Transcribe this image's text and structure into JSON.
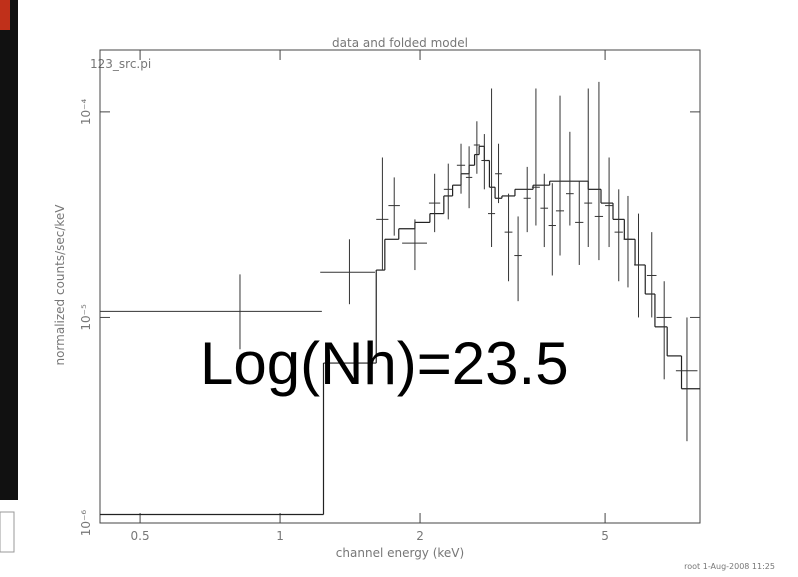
{
  "chart_data": {
    "type": "spectrum",
    "title": "data and folded model",
    "subtitle": "123_src.pi",
    "x_label": "channel energy (keV)",
    "y_label": "normalized counts/sec/keV",
    "footer": "root  1-Aug-2008 11:25",
    "annotation": "Log(Nh)=23.5",
    "log_x": true,
    "log_y": true,
    "xlim": [
      0.41,
      8
    ],
    "ylim": [
      1e-06,
      0.0002
    ],
    "xticks": [
      0.5,
      1,
      2,
      5
    ],
    "yticks": [
      {
        "value": 1e-06,
        "label": "10⁻⁶"
      },
      {
        "value": 1e-05,
        "label": "10⁻⁵"
      },
      {
        "value": 0.0001,
        "label": "10⁻⁴"
      }
    ],
    "color": "#333333",
    "data": {
      "x": [
        0.82,
        1.41,
        1.66,
        1.76,
        1.95,
        2.15,
        2.3,
        2.45,
        2.55,
        2.65,
        2.75,
        2.85,
        2.95,
        3.1,
        3.25,
        3.4,
        3.55,
        3.7,
        3.85,
        4.0,
        4.2,
        4.4,
        4.6,
        4.85,
        5.1,
        5.35,
        5.6,
        5.9,
        6.3,
        6.7,
        7.5
      ],
      "x_halfwidth": [
        0.41,
        0.19,
        0.05,
        0.05,
        0.12,
        0.06,
        0.05,
        0.05,
        0.04,
        0.04,
        0.04,
        0.05,
        0.05,
        0.06,
        0.06,
        0.06,
        0.07,
        0.07,
        0.07,
        0.08,
        0.08,
        0.09,
        0.09,
        0.1,
        0.1,
        0.11,
        0.12,
        0.13,
        0.15,
        0.25,
        0.4
      ],
      "values": [
        1.07e-05,
        1.66e-05,
        3e-05,
        3.5e-05,
        2.3e-05,
        3.6e-05,
        4.2e-05,
        5.5e-05,
        4.8e-05,
        6.9e-05,
        5.8e-05,
        3.2e-05,
        5e-05,
        2.6e-05,
        2e-05,
        3.8e-05,
        4.3e-05,
        3.4e-05,
        2.8e-05,
        3.3e-05,
        4e-05,
        2.9e-05,
        3.6e-05,
        3.1e-05,
        3.5e-05,
        2.6e-05,
        2.4e-05,
        1.8e-05,
        1.6e-05,
        1e-05,
        5.5e-06
      ],
      "y_lower": [
        7e-06,
        1.16e-05,
        1.7e-05,
        2.5e-05,
        1.7e-05,
        2.6e-05,
        3e-05,
        4e-05,
        3.4e-05,
        5e-05,
        4.2e-05,
        2.2e-05,
        3.6e-05,
        1.5e-05,
        1.2e-05,
        2.6e-05,
        2.8e-05,
        2.2e-05,
        1.6e-05,
        2e-05,
        2.8e-05,
        1.8e-05,
        2.2e-05,
        1.9e-05,
        2.2e-05,
        1.5e-05,
        1.4e-05,
        1e-05,
        1e-05,
        5e-06,
        2.5e-06
      ],
      "y_upper": [
        1.62e-05,
        2.4e-05,
        6e-05,
        4.8e-05,
        3e-05,
        5e-05,
        5.6e-05,
        7e-05,
        6.8e-05,
        9e-05,
        7.8e-05,
        0.00013,
        7e-05,
        4e-05,
        3.1e-05,
        5.4e-05,
        0.00013,
        5e-05,
        4.5e-05,
        0.00012,
        8e-05,
        4.6e-05,
        0.00013,
        0.00014,
        6e-05,
        4.2e-05,
        3.9e-05,
        3.2e-05,
        2.6e-05,
        1.5e-05,
        1e-05
      ]
    },
    "model": {
      "bins": [
        0.41,
        1.24,
        1.61,
        1.68,
        1.8,
        1.95,
        2.1,
        2.25,
        2.35,
        2.45,
        2.55,
        2.62,
        2.68,
        2.75,
        2.82,
        2.9,
        3.0,
        3.2,
        3.5,
        3.8,
        4.2,
        4.6,
        4.9,
        5.2,
        5.5,
        5.8,
        6.1,
        6.4,
        6.8,
        7.3,
        8.0
      ],
      "values": [
        1.1e-06,
        6e-06,
        1.7e-05,
        2.4e-05,
        2.7e-05,
        2.9e-05,
        3.2e-05,
        3.9e-05,
        4.4e-05,
        5e-05,
        5.5e-05,
        6.2e-05,
        6.8e-05,
        5.8e-05,
        4.3e-05,
        3.8e-05,
        3.9e-05,
        4.2e-05,
        4.4e-05,
        4.6e-05,
        4.6e-05,
        4.2e-05,
        3.6e-05,
        3e-05,
        2.4e-05,
        1.8e-05,
        1.3e-05,
        9e-06,
        6.5e-06,
        4.5e-06
      ]
    }
  }
}
